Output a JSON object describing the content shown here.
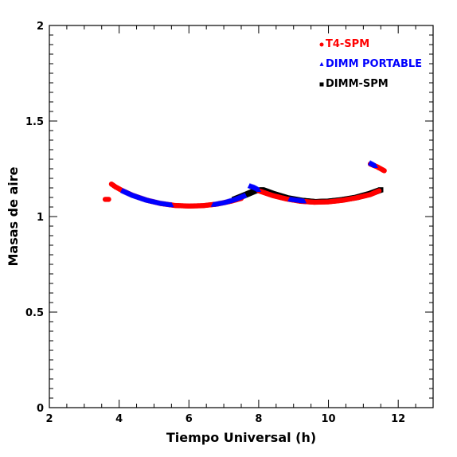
{
  "chart_data": {
    "type": "scatter",
    "xlabel": "Tiempo Universal (h)",
    "ylabel": "Masas de aire",
    "xlim": [
      2,
      13
    ],
    "ylim": [
      0,
      2
    ],
    "x_ticks": [
      "2",
      "4",
      "6",
      "8",
      "10",
      "12"
    ],
    "y_ticks": [
      "0",
      "0.5",
      "1",
      "1.5",
      "2"
    ],
    "legend_position": "top-right",
    "grid": false,
    "series": [
      {
        "name": "T4-SPM",
        "color": "#ff0000",
        "marker": "circle",
        "segments": [
          [
            [
              3.6,
              1.09
            ],
            [
              3.7,
              1.09
            ]
          ],
          [
            [
              3.78,
              1.17
            ],
            [
              3.9,
              1.155
            ],
            [
              4.1,
              1.135
            ],
            [
              4.4,
              1.11
            ],
            [
              4.8,
              1.085
            ],
            [
              5.2,
              1.068
            ],
            [
              5.6,
              1.058
            ],
            [
              6.0,
              1.055
            ],
            [
              6.4,
              1.057
            ],
            [
              6.8,
              1.065
            ],
            [
              7.2,
              1.08
            ],
            [
              7.5,
              1.095
            ]
          ],
          [
            [
              8.0,
              1.135
            ],
            [
              8.4,
              1.11
            ],
            [
              8.8,
              1.092
            ],
            [
              9.2,
              1.08
            ],
            [
              9.6,
              1.075
            ],
            [
              10.0,
              1.077
            ],
            [
              10.4,
              1.085
            ],
            [
              10.8,
              1.098
            ],
            [
              11.2,
              1.115
            ],
            [
              11.45,
              1.135
            ]
          ],
          [
            [
              11.2,
              1.275
            ],
            [
              11.4,
              1.26
            ],
            [
              11.6,
              1.24
            ]
          ]
        ]
      },
      {
        "name": "DIMM PORTABLE",
        "color": "#0000ff",
        "marker": "triangle",
        "segments": [
          [
            [
              4.1,
              1.135
            ],
            [
              4.4,
              1.11
            ],
            [
              4.8,
              1.085
            ],
            [
              5.2,
              1.068
            ],
            [
              5.5,
              1.06
            ]
          ],
          [
            [
              6.7,
              1.062
            ],
            [
              7.0,
              1.072
            ],
            [
              7.3,
              1.088
            ],
            [
              7.6,
              1.11
            ]
          ],
          [
            [
              7.75,
              1.16
            ],
            [
              7.9,
              1.15
            ],
            [
              8.0,
              1.14
            ]
          ],
          [
            [
              8.9,
              1.09
            ],
            [
              9.3,
              1.08
            ]
          ],
          [
            [
              11.2,
              1.28
            ],
            [
              11.35,
              1.265
            ]
          ]
        ]
      },
      {
        "name": "DIMM-SPM",
        "color": "#000000",
        "marker": "square",
        "segments": [
          [
            [
              7.3,
              1.09
            ],
            [
              7.6,
              1.112
            ],
            [
              7.9,
              1.135
            ],
            [
              8.1,
              1.14
            ],
            [
              8.4,
              1.12
            ],
            [
              8.8,
              1.098
            ],
            [
              9.2,
              1.085
            ],
            [
              9.6,
              1.078
            ],
            [
              10.0,
              1.08
            ],
            [
              10.4,
              1.088
            ],
            [
              10.8,
              1.1
            ],
            [
              11.2,
              1.12
            ],
            [
              11.5,
              1.14
            ]
          ]
        ]
      }
    ]
  }
}
